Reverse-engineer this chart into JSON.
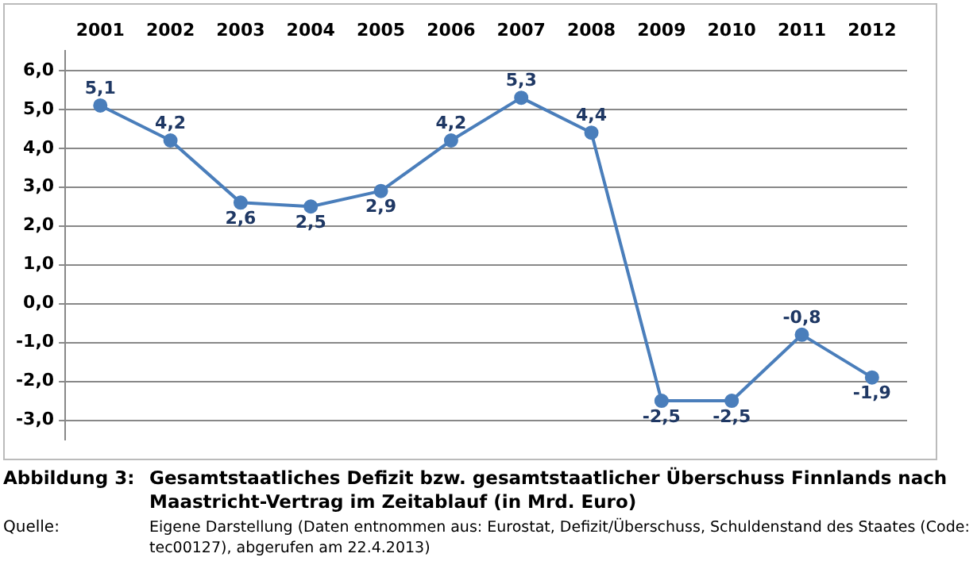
{
  "chart_data": {
    "type": "line",
    "title": "Gesamtstaatliches Defizit bzw. gesamtstaatlicher Überschuss Finnlands nach Maastricht-Vertrag im Zeitablauf (in Mrd. Euro)",
    "annotations": [
      "Abbildung 3:",
      "Quelle:",
      "Eigene Darstellung (Daten entnommen aus: Eurostat, Defizit/Überschuss, Schuldenstand des Staates (Code: tec00127), abgerufen am 22.4.2013)"
    ],
    "categories": [
      "2001",
      "2002",
      "2003",
      "2004",
      "2005",
      "2006",
      "2007",
      "2008",
      "2009",
      "2010",
      "2011",
      "2012"
    ],
    "series": [
      {
        "color": "#4a7ebb",
        "values": [
          5.1,
          4.2,
          2.6,
          2.5,
          2.9,
          4.2,
          5.3,
          4.4,
          -2.5,
          -2.5,
          -0.8,
          -1.9
        ],
        "value_labels": [
          "5,1",
          "4,2",
          "2,6",
          "2,5",
          "2,9",
          "4,2",
          "5,3",
          "4,4",
          "-2,5",
          "-2,5",
          "-0,8",
          "-1,9"
        ]
      }
    ],
    "ylim": [
      -3.5,
      6.5
    ],
    "yticks": [
      {
        "value": -3,
        "label": "-3,0"
      },
      {
        "value": -2,
        "label": "-2,0"
      },
      {
        "value": -1,
        "label": "-1,0"
      },
      {
        "value": 0,
        "label": "0,0"
      },
      {
        "value": 1,
        "label": "1,0"
      },
      {
        "value": 2,
        "label": "2,0"
      },
      {
        "value": 3,
        "label": "3,0"
      },
      {
        "value": 4,
        "label": "4,0"
      },
      {
        "value": 5,
        "label": "5,0"
      },
      {
        "value": 6,
        "label": "6,0"
      }
    ],
    "grid": "y",
    "marker": "circle",
    "line_style": "solid",
    "legend": false
  }
}
